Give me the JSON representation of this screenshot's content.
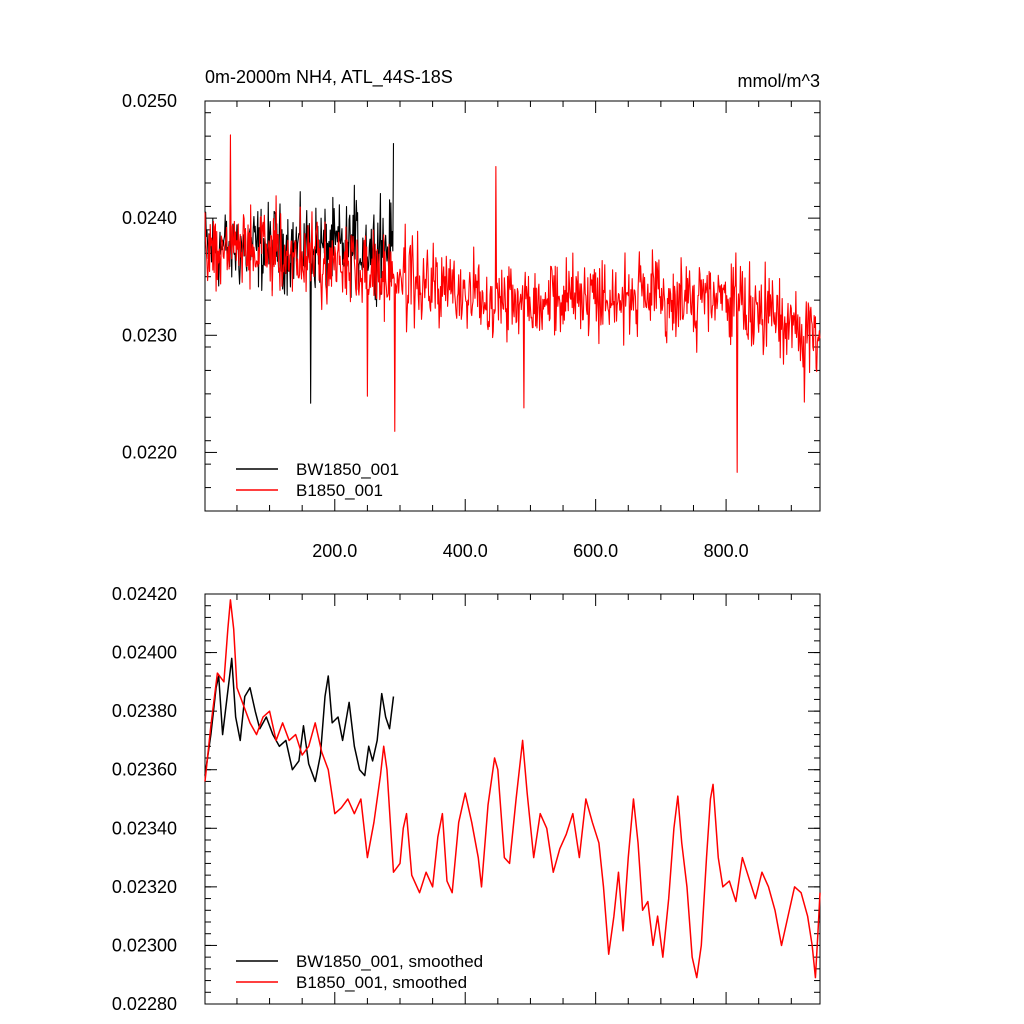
{
  "chart_data": [
    {
      "type": "line",
      "title": "0m-2000m NH4, ATL_44S-18S",
      "units": "mmol/m^3",
      "xlim": [
        1,
        944
      ],
      "ylim": [
        0.0215,
        0.025
      ],
      "yticks": [
        0.022,
        0.023,
        0.024,
        0.025
      ],
      "ytick_labels": [
        "0.0220",
        "0.0230",
        "0.0240",
        "0.0250"
      ],
      "xticks": [
        200,
        400,
        600,
        800
      ],
      "xtick_labels": [
        "200.0",
        "400.0",
        "600.0",
        "800.0"
      ],
      "legend_position": "bottom-left",
      "series": [
        {
          "name": "BW1850_001",
          "color": "#000000",
          "x_range": [
            1,
            290
          ],
          "mean": 0.02375,
          "noise": 0.00038,
          "extremes": [
            [
              163,
              0.02242
            ],
            [
              290,
              0.02464
            ],
            [
              230,
              0.02428
            ],
            [
              270,
              0.02421
            ]
          ]
        },
        {
          "name": "B1850_001",
          "color": "#ff0000",
          "x_range": [
            1,
            944
          ],
          "anchor_x": [
            1,
            100,
            200,
            290,
            400,
            500,
            600,
            700,
            800,
            944
          ],
          "anchor_mean": [
            0.02375,
            0.02372,
            0.02362,
            0.0235,
            0.02335,
            0.02332,
            0.02335,
            0.0233,
            0.0233,
            0.023
          ],
          "noise": 0.00036,
          "extremes": [
            [
              40,
              0.02471
            ],
            [
              292,
              0.02218
            ],
            [
              447,
              0.02444
            ],
            [
              490,
              0.02238
            ],
            [
              817,
              0.02183
            ],
            [
              250,
              0.02248
            ],
            [
              920,
              0.02243
            ]
          ]
        }
      ]
    },
    {
      "type": "line",
      "xlim": [
        1,
        944
      ],
      "ylim": [
        0.0228,
        0.0242
      ],
      "yticks": [
        0.0228,
        0.023,
        0.0232,
        0.0234,
        0.0236,
        0.0238,
        0.024,
        0.0242
      ],
      "ytick_labels": [
        "0.02280",
        "0.02300",
        "0.02320",
        "0.02340",
        "0.02360",
        "0.02380",
        "0.02400",
        "0.02420"
      ],
      "legend_position": "bottom-left",
      "series": [
        {
          "name": "BW1850_001, smoothed",
          "color": "#000000",
          "x_range": [
            1,
            290
          ],
          "points": [
            [
              1,
              0.02358
            ],
            [
              10,
              0.02372
            ],
            [
              18,
              0.02388
            ],
            [
              22,
              0.02392
            ],
            [
              28,
              0.02372
            ],
            [
              35,
              0.02385
            ],
            [
              42,
              0.02398
            ],
            [
              48,
              0.02378
            ],
            [
              55,
              0.0237
            ],
            [
              62,
              0.02385
            ],
            [
              70,
              0.02388
            ],
            [
              78,
              0.0238
            ],
            [
              85,
              0.02374
            ],
            [
              95,
              0.02378
            ],
            [
              105,
              0.02372
            ],
            [
              115,
              0.02368
            ],
            [
              125,
              0.0237
            ],
            [
              135,
              0.0236
            ],
            [
              145,
              0.02363
            ],
            [
              152,
              0.02375
            ],
            [
              160,
              0.02362
            ],
            [
              170,
              0.02356
            ],
            [
              178,
              0.02365
            ],
            [
              185,
              0.02385
            ],
            [
              190,
              0.02392
            ],
            [
              196,
              0.02376
            ],
            [
              205,
              0.02378
            ],
            [
              212,
              0.0237
            ],
            [
              222,
              0.02383
            ],
            [
              230,
              0.02368
            ],
            [
              238,
              0.0236
            ],
            [
              246,
              0.02358
            ],
            [
              252,
              0.02368
            ],
            [
              258,
              0.02363
            ],
            [
              265,
              0.0237
            ],
            [
              272,
              0.02386
            ],
            [
              278,
              0.02378
            ],
            [
              284,
              0.02374
            ],
            [
              290,
              0.02385
            ]
          ]
        },
        {
          "name": "B1850_001, smoothed",
          "color": "#ff0000",
          "x_range": [
            1,
            944
          ],
          "points": [
            [
              1,
              0.02356
            ],
            [
              10,
              0.02375
            ],
            [
              20,
              0.02393
            ],
            [
              30,
              0.0239
            ],
            [
              36,
              0.02408
            ],
            [
              40,
              0.02418
            ],
            [
              45,
              0.02408
            ],
            [
              50,
              0.02388
            ],
            [
              60,
              0.02382
            ],
            [
              70,
              0.02376
            ],
            [
              80,
              0.02372
            ],
            [
              90,
              0.02378
            ],
            [
              100,
              0.0238
            ],
            [
              110,
              0.0237
            ],
            [
              120,
              0.02376
            ],
            [
              130,
              0.0237
            ],
            [
              140,
              0.02372
            ],
            [
              150,
              0.02365
            ],
            [
              160,
              0.02368
            ],
            [
              170,
              0.02376
            ],
            [
              180,
              0.02366
            ],
            [
              190,
              0.0236
            ],
            [
              200,
              0.02345
            ],
            [
              210,
              0.02347
            ],
            [
              220,
              0.0235
            ],
            [
              230,
              0.02345
            ],
            [
              240,
              0.0235
            ],
            [
              250,
              0.0233
            ],
            [
              260,
              0.02342
            ],
            [
              270,
              0.02358
            ],
            [
              275,
              0.02368
            ],
            [
              280,
              0.0236
            ],
            [
              290,
              0.02325
            ],
            [
              300,
              0.02328
            ],
            [
              305,
              0.0234
            ],
            [
              310,
              0.02345
            ],
            [
              318,
              0.02324
            ],
            [
              330,
              0.02318
            ],
            [
              340,
              0.02325
            ],
            [
              350,
              0.0232
            ],
            [
              358,
              0.02337
            ],
            [
              365,
              0.02345
            ],
            [
              372,
              0.02322
            ],
            [
              380,
              0.02318
            ],
            [
              390,
              0.02342
            ],
            [
              400,
              0.02352
            ],
            [
              410,
              0.02342
            ],
            [
              420,
              0.0233
            ],
            [
              425,
              0.0232
            ],
            [
              435,
              0.02348
            ],
            [
              445,
              0.02364
            ],
            [
              450,
              0.0236
            ],
            [
              460,
              0.0233
            ],
            [
              468,
              0.02328
            ],
            [
              478,
              0.0235
            ],
            [
              488,
              0.0237
            ],
            [
              495,
              0.02352
            ],
            [
              505,
              0.0233
            ],
            [
              515,
              0.02345
            ],
            [
              525,
              0.0234
            ],
            [
              535,
              0.02325
            ],
            [
              545,
              0.02333
            ],
            [
              555,
              0.02338
            ],
            [
              565,
              0.02345
            ],
            [
              575,
              0.0233
            ],
            [
              585,
              0.0235
            ],
            [
              595,
              0.02342
            ],
            [
              605,
              0.02335
            ],
            [
              612,
              0.0232
            ],
            [
              620,
              0.02297
            ],
            [
              628,
              0.0231
            ],
            [
              635,
              0.02325
            ],
            [
              642,
              0.02305
            ],
            [
              650,
              0.0233
            ],
            [
              658,
              0.0235
            ],
            [
              665,
              0.02335
            ],
            [
              672,
              0.02312
            ],
            [
              680,
              0.02315
            ],
            [
              688,
              0.023
            ],
            [
              695,
              0.0231
            ],
            [
              703,
              0.02296
            ],
            [
              712,
              0.02316
            ],
            [
              720,
              0.0234
            ],
            [
              726,
              0.02351
            ],
            [
              732,
              0.02335
            ],
            [
              740,
              0.0232
            ],
            [
              748,
              0.02296
            ],
            [
              755,
              0.02289
            ],
            [
              762,
              0.023
            ],
            [
              770,
              0.0233
            ],
            [
              776,
              0.0235
            ],
            [
              780,
              0.02355
            ],
            [
              788,
              0.0233
            ],
            [
              795,
              0.0232
            ],
            [
              805,
              0.02322
            ],
            [
              815,
              0.02315
            ],
            [
              825,
              0.0233
            ],
            [
              835,
              0.02323
            ],
            [
              845,
              0.02316
            ],
            [
              855,
              0.02325
            ],
            [
              865,
              0.0232
            ],
            [
              875,
              0.02312
            ],
            [
              885,
              0.023
            ],
            [
              895,
              0.0231
            ],
            [
              905,
              0.0232
            ],
            [
              915,
              0.02318
            ],
            [
              925,
              0.0231
            ],
            [
              932,
              0.023
            ],
            [
              937,
              0.02289
            ],
            [
              941,
              0.02305
            ],
            [
              944,
              0.02318
            ]
          ]
        }
      ]
    }
  ]
}
